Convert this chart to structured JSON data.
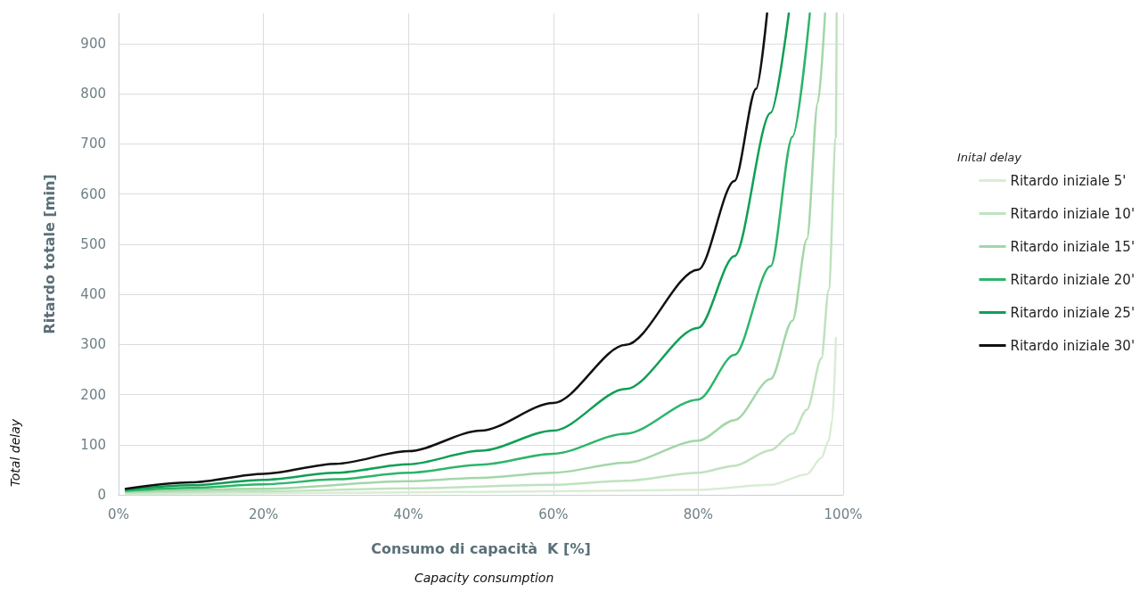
{
  "chart_data": {
    "type": "line",
    "xlabel": "Consumo di capacità  K [%]",
    "ylabel": "Ritardo totale [min]",
    "legend_title": "Inital delay",
    "annotations": [
      "Capacity consumption",
      "Total delay"
    ],
    "xlim": [
      0,
      100
    ],
    "xticks": [
      {
        "value": 0,
        "label": "0%"
      },
      {
        "value": 20,
        "label": "20%"
      },
      {
        "value": 40,
        "label": "40%"
      },
      {
        "value": 60,
        "label": "60%"
      },
      {
        "value": 80,
        "label": "80%"
      },
      {
        "value": 100,
        "label": "100%"
      }
    ],
    "ylim": [
      0,
      960
    ],
    "yticks": [
      0,
      100,
      200,
      300,
      400,
      500,
      600,
      700,
      800,
      900
    ],
    "grid": true,
    "legend": "right",
    "marker": "none",
    "line_style": "solid",
    "series": [
      {
        "name": "Ritardo iniziale 5'",
        "color": "#d9edd5",
        "x": [
          1,
          20,
          40,
          60,
          80,
          90,
          95,
          97,
          98,
          98.5,
          99
        ],
        "values": [
          2,
          3,
          5,
          7,
          10,
          20,
          41,
          74,
          108,
          149,
          313
        ]
      },
      {
        "name": "Ritardo iniziale 10'",
        "color": "#bfe2bf",
        "x": [
          1,
          20,
          40,
          60,
          70,
          80,
          85,
          90,
          93,
          95,
          97,
          98,
          99,
          99.1
        ],
        "values": [
          4,
          7,
          13,
          20,
          28,
          44,
          58,
          89,
          122,
          170,
          272,
          408,
          714,
          960
        ]
      },
      {
        "name": "Ritardo iniziale 15'",
        "color": "#a3d7a8",
        "x": [
          1,
          20,
          40,
          50,
          60,
          70,
          80,
          85,
          90,
          93,
          95,
          96.5,
          97.5
        ],
        "values": [
          6,
          12,
          27,
          34,
          44,
          64,
          108,
          149,
          231,
          347,
          510,
          782,
          960
        ]
      },
      {
        "name": "Ritardo iniziale 20'",
        "color": "#2db56a",
        "x": [
          1,
          10,
          20,
          30,
          40,
          50,
          60,
          70,
          80,
          85,
          90,
          93,
          95.4
        ],
        "values": [
          8,
          14,
          21,
          31,
          44,
          60,
          82,
          122,
          190,
          279,
          456,
          714,
          960
        ]
      },
      {
        "name": "Ritardo iniziale 25'",
        "color": "#0f9f55",
        "x": [
          1,
          10,
          20,
          30,
          40,
          50,
          60,
          70,
          80,
          85,
          90,
          92.5
        ],
        "values": [
          10,
          19,
          30,
          44,
          61,
          88,
          128,
          211,
          333,
          476,
          762,
          960
        ]
      },
      {
        "name": "Ritardo iniziale 30'",
        "color": "#111111",
        "x": [
          1,
          10,
          20,
          30,
          40,
          50,
          60,
          70,
          80,
          85,
          88,
          89.5
        ],
        "values": [
          12,
          25,
          42,
          62,
          87,
          128,
          183,
          299,
          449,
          626,
          810,
          960
        ]
      }
    ]
  }
}
